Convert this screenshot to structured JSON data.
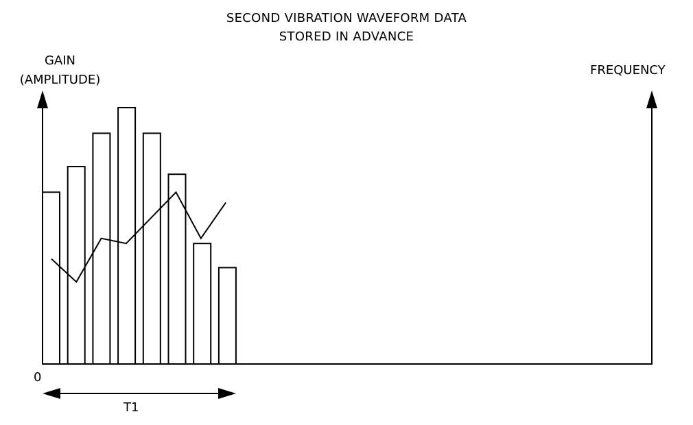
{
  "title": {
    "line1": "SECOND VIBRATION WAVEFORM DATA",
    "line2": "STORED IN ADVANCE"
  },
  "y_axis": {
    "label_line1": "GAIN",
    "label_line2": "(AMPLITUDE)"
  },
  "right_axis": {
    "label": "FREQUENCY"
  },
  "origin_label": "0",
  "span_label": "T1",
  "colors": {
    "ink": "#000000",
    "background": "#ffffff"
  },
  "chart_data": {
    "type": "bar",
    "bar_values": [
      0.67,
      0.77,
      0.9,
      1.0,
      0.9,
      0.74,
      0.47,
      0.376
    ],
    "line_values": [
      0.41,
      0.32,
      0.49,
      0.47,
      0.57,
      0.67,
      0.49,
      0.63
    ],
    "ylim": [
      0,
      1
    ]
  }
}
